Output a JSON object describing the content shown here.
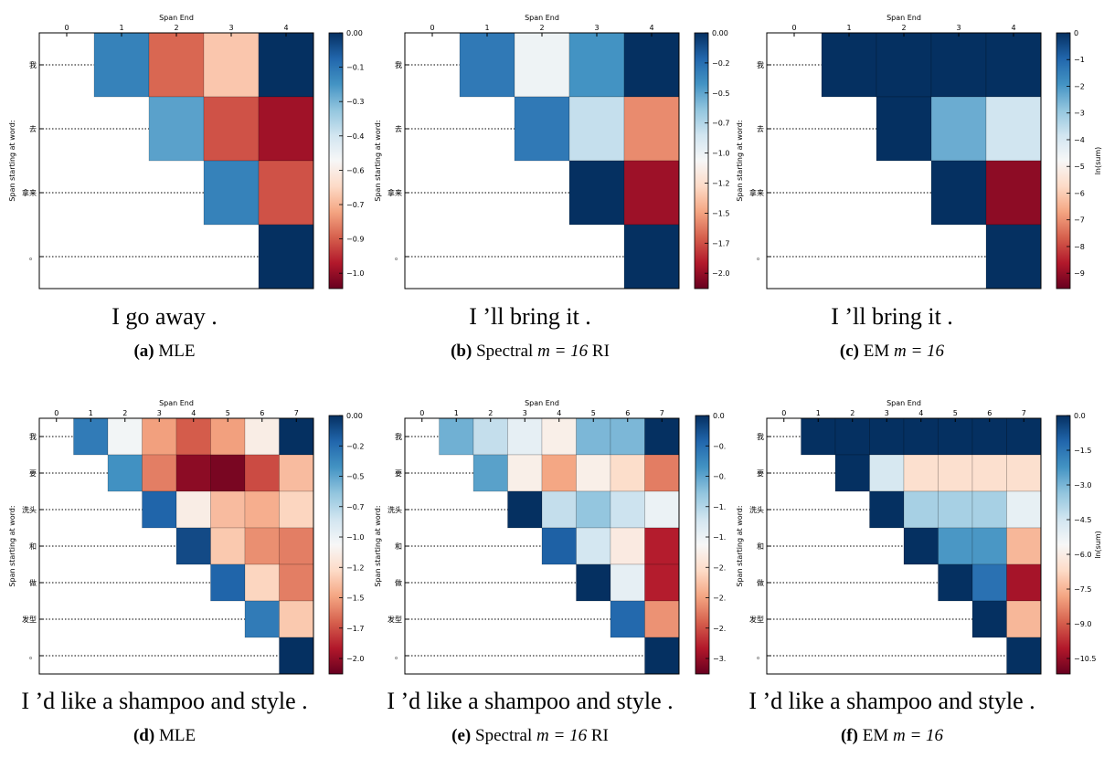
{
  "chart_data": [
    {
      "type": "heatmap",
      "xlabel": "Span End",
      "ylabel": "Span starting at word:",
      "x_ticks": [
        "0",
        "1",
        "2",
        "3",
        "4"
      ],
      "y_ticks": [
        "我",
        "去",
        "拿来",
        "。"
      ],
      "colorbar": {
        "min": -1.05,
        "max": 0.0,
        "ticks": [
          "0.00",
          "−0.1",
          "−0.3",
          "−0.4",
          "−0.6",
          "−0.7",
          "−0.9",
          "−1.0"
        ],
        "label": ""
      },
      "values": [
        [
          -0.17,
          -0.83,
          -0.67,
          0.0
        ],
        [
          -0.24,
          -0.86,
          -0.97
        ],
        [
          -0.17,
          -0.86
        ],
        [
          0.0
        ]
      ],
      "sentence": "I go away .",
      "caption_letter": "(a)",
      "caption_pre": "MLE",
      "caption_math": "",
      "caption_post": ""
    },
    {
      "type": "heatmap",
      "xlabel": "Span End",
      "ylabel": "Span starting at word:",
      "x_ticks": [
        "0",
        "1",
        "2",
        "3",
        "4"
      ],
      "y_ticks": [
        "我",
        "去",
        "拿来",
        "。"
      ],
      "colorbar": {
        "min": -2.1,
        "max": 0.0,
        "ticks": [
          "0.00",
          "−0.2",
          "−0.5",
          "−0.7",
          "−1.0",
          "−1.2",
          "−1.5",
          "−1.7",
          "−2.0"
        ],
        "label": ""
      },
      "values": [
        [
          -0.3,
          -1.0,
          -0.42,
          0.0
        ],
        [
          -0.3,
          -0.8,
          -1.55
        ],
        [
          0.0,
          -1.95
        ],
        [
          0.0
        ]
      ],
      "sentence": "I ’ll bring it .",
      "caption_letter": "(b)",
      "caption_pre": "Spectral ",
      "caption_math": "m = 16",
      "caption_post": " RI"
    },
    {
      "type": "heatmap",
      "xlabel": "Span End",
      "ylabel": "Span starting at word:",
      "x_ticks": [
        "0",
        "1",
        "2",
        "3",
        "4"
      ],
      "y_ticks": [
        "我",
        "去",
        "拿来",
        "。"
      ],
      "colorbar": {
        "min": -10.0,
        "max": 0.0,
        "ticks": [
          "0",
          "−1",
          "−2",
          "−3",
          "−4",
          "−5",
          "−6",
          "−7",
          "−8",
          "−9"
        ],
        "label": "ln(sum)"
      },
      "values": [
        [
          0.0,
          0.0,
          0.0,
          0.0
        ],
        [
          0.0,
          -2.5,
          -4.0
        ],
        [
          0.0,
          -9.5
        ],
        [
          0.0
        ]
      ],
      "sentence": "I ’ll bring it .",
      "caption_letter": "(c)",
      "caption_pre": "EM ",
      "caption_math": "m = 16",
      "caption_post": ""
    },
    {
      "type": "heatmap",
      "xlabel": "Span End",
      "ylabel": "Span starting at word:",
      "x_ticks": [
        "0",
        "1",
        "2",
        "3",
        "4",
        "5",
        "6",
        "7"
      ],
      "y_ticks": [
        "我",
        "要",
        "洗头",
        "和",
        "做",
        "发型",
        "。"
      ],
      "colorbar": {
        "min": -2.05,
        "max": 0.0,
        "ticks": [
          "0.00",
          "−0.2",
          "−0.5",
          "−0.7",
          "−1.0",
          "−1.2",
          "−1.5",
          "−1.7",
          "−2.0"
        ],
        "label": ""
      },
      "values": [
        [
          -0.3,
          -1.0,
          -1.45,
          -1.65,
          -1.45,
          -1.1,
          0.0
        ],
        [
          -0.4,
          -1.55,
          -1.95,
          -2.0,
          -1.7,
          -1.35
        ],
        [
          -0.2,
          -1.1,
          -1.35,
          -1.4,
          -1.25
        ],
        [
          -0.1,
          -1.3,
          -1.5,
          -1.55
        ],
        [
          -0.2,
          -1.25,
          -1.55
        ],
        [
          -0.3,
          -1.3
        ],
        [
          0.0
        ]
      ],
      "sentence": "I ’d like a shampoo and style .",
      "caption_letter": "(d)",
      "caption_pre": "MLE",
      "caption_math": "",
      "caption_post": ""
    },
    {
      "type": "heatmap",
      "xlabel": "Span End",
      "ylabel": "Span starting at word:",
      "x_ticks": [
        "0",
        "1",
        "2",
        "3",
        "4",
        "5",
        "6",
        "7"
      ],
      "y_ticks": [
        "我",
        "要",
        "洗头",
        "和",
        "做",
        "发型",
        "。"
      ],
      "colorbar": {
        "min": -3.3,
        "max": 0.0,
        "ticks": [
          "0.0",
          "−0.",
          "−0.",
          "−1.",
          "−1.",
          "−2.",
          "−2.",
          "−2.",
          "−3."
        ],
        "label": ""
      },
      "values": [
        [
          -0.85,
          -1.25,
          -1.5,
          -1.75,
          -0.9,
          -0.9,
          0.0
        ],
        [
          -0.75,
          -1.75,
          -2.3,
          -1.75,
          -1.95,
          -2.5
        ],
        [
          0.0,
          -1.25,
          -1.0,
          -1.3,
          -1.55
        ],
        [
          -0.3,
          -1.35,
          -1.8,
          -2.95
        ],
        [
          0.0,
          -1.5,
          -2.95
        ],
        [
          -0.35,
          -2.4
        ],
        [
          0.0
        ]
      ],
      "sentence": "I ’d like a shampoo and style .",
      "caption_letter": "(e)",
      "caption_pre": "Spectral ",
      "caption_math": "m = 16",
      "caption_post": " RI"
    },
    {
      "type": "heatmap",
      "xlabel": "Span End",
      "ylabel": "Span starting at word:",
      "x_ticks": [
        "0",
        "1",
        "2",
        "3",
        "4",
        "5",
        "6",
        "7"
      ],
      "y_ticks": [
        "我",
        "要",
        "洗头",
        "和",
        "做",
        "发型",
        "。"
      ],
      "colorbar": {
        "min": -12.0,
        "max": 0.0,
        "ticks": [
          "0.0",
          "−1.5",
          "−3.0",
          "−4.5",
          "−6.0",
          "−7.5",
          "−9.0",
          "−10.5"
        ],
        "label": "ln(sum)"
      },
      "values": [
        [
          0.0,
          0.0,
          0.0,
          0.0,
          0.0,
          0.0,
          0.0
        ],
        [
          0.0,
          -5.0,
          -7.0,
          -7.0,
          -7.0,
          -7.0
        ],
        [
          0.0,
          -4.0,
          -4.0,
          -4.0,
          -5.5
        ],
        [
          0.0,
          -2.5,
          -2.5,
          -8.0
        ],
        [
          0.0,
          -1.5,
          -11.0
        ],
        [
          0.0,
          -8.0
        ],
        [
          0.0
        ]
      ],
      "sentence": "I ’d like a shampoo and style .",
      "caption_letter": "(f)",
      "caption_pre": "EM ",
      "caption_math": "m = 16",
      "caption_post": ""
    }
  ]
}
